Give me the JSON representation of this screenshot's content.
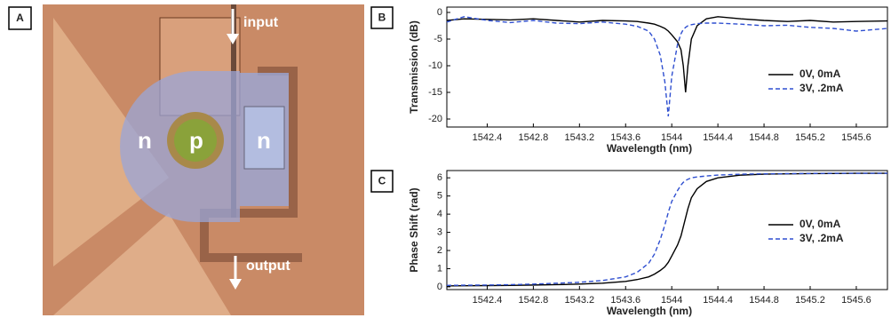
{
  "micrograph": {
    "label": "A",
    "input": "input",
    "output": "output",
    "left_region": "n",
    "center_region": "p",
    "right_region": "n"
  },
  "chart_data": [
    {
      "type": "line",
      "label": "B",
      "ylabel": "Transmission (dB)",
      "xlabel": "Wavelength (nm)",
      "x": [
        1542.05,
        1542.2,
        1542.4,
        1542.6,
        1542.8,
        1543.0,
        1543.2,
        1543.4,
        1543.6,
        1543.7,
        1543.8,
        1543.85,
        1543.9,
        1543.94,
        1543.97,
        1544.0,
        1544.05,
        1544.08,
        1544.1,
        1544.12,
        1544.14,
        1544.17,
        1544.22,
        1544.3,
        1544.4,
        1544.6,
        1544.8,
        1545.0,
        1545.2,
        1545.4,
        1545.6,
        1545.87
      ],
      "series": [
        {
          "name": "0V,  0mA",
          "color": "#000000",
          "style": "solid",
          "values": [
            -1.5,
            -1.2,
            -1.3,
            -1.4,
            -1.2,
            -1.5,
            -1.8,
            -1.5,
            -1.6,
            -1.7,
            -2,
            -2.2,
            -2.6,
            -3,
            -3.5,
            -4.2,
            -5.5,
            -7,
            -10,
            -15,
            -10,
            -5,
            -2.5,
            -1.2,
            -0.8,
            -1.2,
            -1.5,
            -1.7,
            -1.5,
            -1.8,
            -1.7,
            -1.6
          ]
        },
        {
          "name": "3V, .2mA",
          "color": "#2f4fd0",
          "style": "dashed",
          "values": [
            -1.8,
            -0.8,
            -1.5,
            -1.9,
            -1.5,
            -2,
            -2.1,
            -1.8,
            -2.2,
            -2.6,
            -3.5,
            -5,
            -8,
            -13,
            -19.5,
            -12,
            -6,
            -4,
            -3.2,
            -2.8,
            -2.5,
            -2.3,
            -2.1,
            -2,
            -2,
            -2.2,
            -2.5,
            -2.4,
            -2.8,
            -3,
            -3.5,
            -3
          ]
        }
      ],
      "xlim": [
        1542.05,
        1545.87
      ],
      "ylim": [
        -21.5,
        1
      ],
      "xticks": [
        1542.4,
        1542.8,
        1543.2,
        1543.6,
        1544,
        1544.4,
        1544.8,
        1545.2,
        1545.6
      ],
      "yticks": [
        0,
        -5,
        -10,
        -15,
        -20
      ]
    },
    {
      "type": "line",
      "label": "C",
      "ylabel": "Phase Shift (rad)",
      "xlabel": "Wavelength (nm)",
      "x": [
        1542.05,
        1542.2,
        1542.4,
        1542.6,
        1542.8,
        1543.0,
        1543.2,
        1543.4,
        1543.6,
        1543.7,
        1543.8,
        1543.85,
        1543.9,
        1543.94,
        1543.97,
        1544.0,
        1544.05,
        1544.08,
        1544.1,
        1544.12,
        1544.14,
        1544.17,
        1544.22,
        1544.3,
        1544.4,
        1544.6,
        1544.8,
        1545.0,
        1545.2,
        1545.4,
        1545.6,
        1545.87
      ],
      "series": [
        {
          "name": "0V,  0mA",
          "color": "#000000",
          "style": "solid",
          "values": [
            0.05,
            0.06,
            0.07,
            0.08,
            0.1,
            0.12,
            0.15,
            0.2,
            0.3,
            0.4,
            0.55,
            0.7,
            0.9,
            1.1,
            1.35,
            1.7,
            2.3,
            2.8,
            3.3,
            3.8,
            4.3,
            4.9,
            5.4,
            5.8,
            6.0,
            6.15,
            6.2,
            6.22,
            6.23,
            6.24,
            6.25,
            6.25
          ]
        },
        {
          "name": "3V, .2mA",
          "color": "#2f4fd0",
          "style": "dashed",
          "values": [
            0.08,
            0.09,
            0.1,
            0.12,
            0.15,
            0.2,
            0.25,
            0.35,
            0.55,
            0.8,
            1.3,
            1.8,
            2.6,
            3.4,
            4.1,
            4.7,
            5.3,
            5.6,
            5.75,
            5.85,
            5.92,
            6.0,
            6.05,
            6.1,
            6.15,
            6.2,
            6.22,
            6.23,
            6.24,
            6.25,
            6.25,
            6.25
          ]
        }
      ],
      "xlim": [
        1542.05,
        1545.87
      ],
      "ylim": [
        -0.15,
        6.4
      ],
      "xticks": [
        1542.4,
        1542.8,
        1543.2,
        1543.6,
        1544,
        1544.4,
        1544.8,
        1545.2,
        1545.6
      ],
      "yticks": [
        0,
        1,
        2,
        3,
        4,
        5,
        6
      ]
    }
  ]
}
